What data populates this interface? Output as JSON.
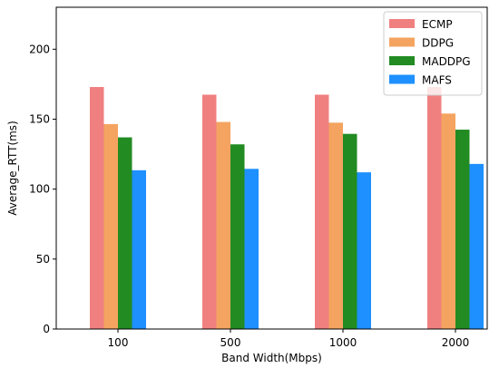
{
  "chart_data": {
    "type": "bar",
    "categories": [
      "100",
      "500",
      "1000",
      "2000"
    ],
    "series": [
      {
        "name": "ECMP",
        "color": "#f08080",
        "values": [
          173,
          167.5,
          167.5,
          173
        ]
      },
      {
        "name": "DDPG",
        "color": "#f4a460",
        "values": [
          146.5,
          148,
          147.5,
          154
        ]
      },
      {
        "name": "MADDPG",
        "color": "#228b22",
        "values": [
          137,
          132,
          139.5,
          142.5
        ]
      },
      {
        "name": "MAFS",
        "color": "#1e90ff",
        "values": [
          113.5,
          114.5,
          112,
          118
        ]
      }
    ],
    "title": "",
    "xlabel": "Band Width(Mbps)",
    "ylabel": "Average_RTT(ms)",
    "ylim": [
      0,
      230
    ],
    "yticks": [
      0,
      50,
      100,
      150,
      200
    ],
    "grid": false,
    "legend": "top-right"
  }
}
